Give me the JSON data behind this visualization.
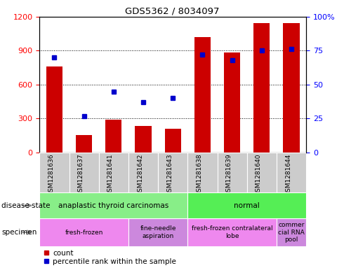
{
  "title": "GDS5362 / 8034097",
  "samples": [
    "GSM1281636",
    "GSM1281637",
    "GSM1281641",
    "GSM1281642",
    "GSM1281643",
    "GSM1281638",
    "GSM1281639",
    "GSM1281640",
    "GSM1281644"
  ],
  "counts": [
    760,
    155,
    290,
    235,
    210,
    1020,
    880,
    1140,
    1140
  ],
  "percentiles": [
    70,
    27,
    45,
    37,
    40,
    72,
    68,
    75,
    76
  ],
  "bar_color": "#cc0000",
  "dot_color": "#0000cc",
  "disease_state": [
    {
      "label": "anaplastic thyroid carcinomas",
      "start": 0,
      "end": 5,
      "color": "#88ee88"
    },
    {
      "label": "normal",
      "start": 5,
      "end": 9,
      "color": "#55ee55"
    }
  ],
  "specimen": [
    {
      "label": "fresh-frozen",
      "start": 0,
      "end": 3,
      "color": "#ee88ee"
    },
    {
      "label": "fine-needle\naspiration",
      "start": 3,
      "end": 5,
      "color": "#cc88dd"
    },
    {
      "label": "fresh-frozen contralateral\nlobe",
      "start": 5,
      "end": 8,
      "color": "#ee88ee"
    },
    {
      "label": "commer\ncial RNA\npool",
      "start": 8,
      "end": 9,
      "color": "#cc88dd"
    }
  ],
  "ylim_left": [
    0,
    1200
  ],
  "ylim_right": [
    0,
    100
  ],
  "yticks_left": [
    0,
    300,
    600,
    900,
    1200
  ],
  "ytick_labels_left": [
    "0",
    "300",
    "600",
    "900",
    "1200"
  ],
  "ytick_labels_right": [
    "0",
    "25",
    "50",
    "75",
    "100%"
  ],
  "plot_bg": "#ffffff",
  "fig_bg": "#ffffff"
}
